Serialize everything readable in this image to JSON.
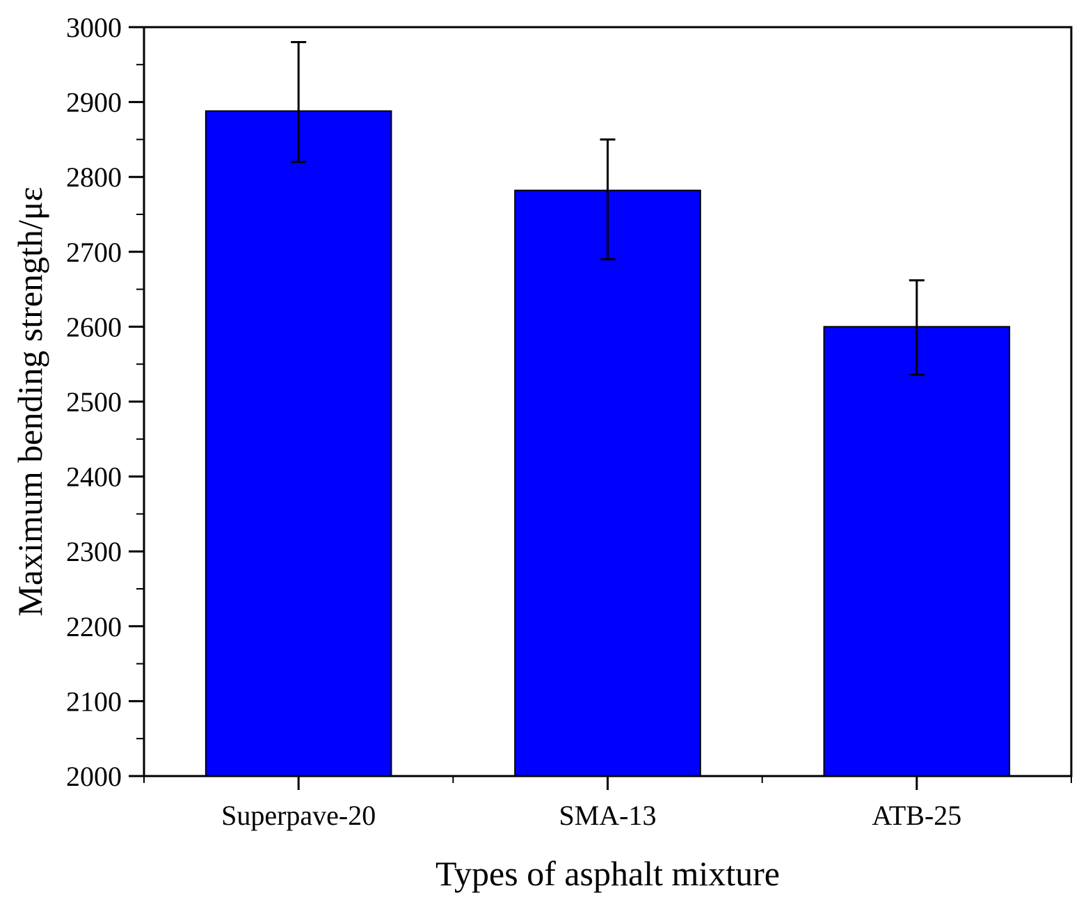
{
  "chart_data": {
    "type": "bar",
    "categories": [
      "Superpave-20",
      "SMA-13",
      "ATB-25"
    ],
    "values": [
      2888,
      2782,
      2600
    ],
    "error": [
      {
        "low": 2820,
        "high": 2980
      },
      {
        "low": 2690,
        "high": 2850
      },
      {
        "low": 2536,
        "high": 2662
      }
    ],
    "xlabel": "Types of asphalt mixture",
    "ylabel": "Maximum bending strength/με",
    "ylim": [
      2000,
      3000
    ],
    "yticks": [
      2000,
      2100,
      2200,
      2300,
      2400,
      2500,
      2600,
      2700,
      2800,
      2900,
      3000
    ],
    "grid": false,
    "bar_color": "#0000ff",
    "bar_edge_color": "#000000"
  }
}
